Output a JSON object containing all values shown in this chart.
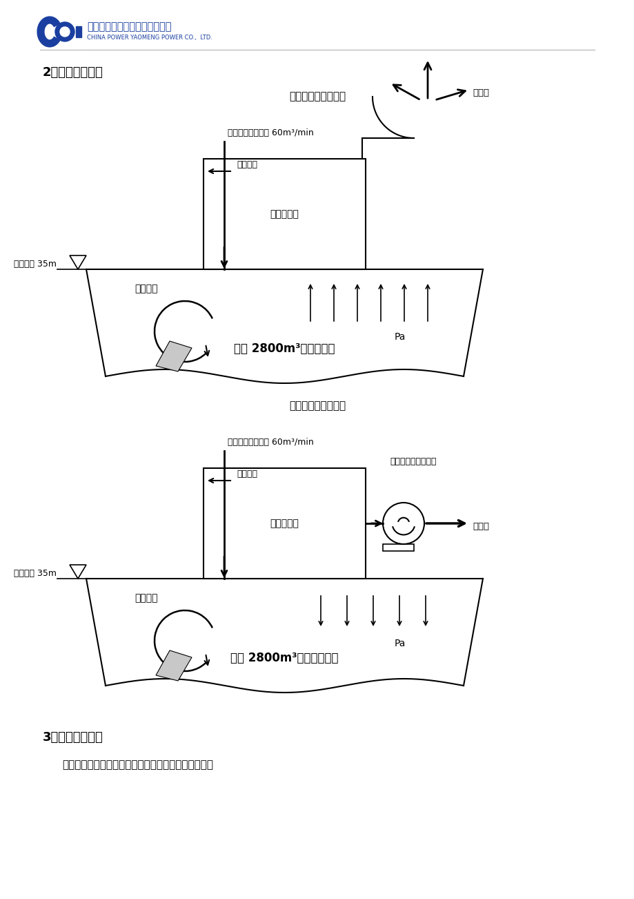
{
  "title_section": "2、改造原理图：",
  "diagram1_title": "改前排气状况示意图",
  "diagram2_title": "改后排气状况示意图",
  "section3_title": "3、改造的可行性",
  "section3_text": "本次改造目的是增加风机，强制排气，减小库内压力。",
  "label_dust_in": "除尘器来灰，气量 60m³/min",
  "label_compressed_air": "压缩空气",
  "label_roof_height": "库顶标高 35m",
  "label_bag_filter": "布袋除尘器",
  "label_ash_enter1": "进灰受阻",
  "label_ash_enter2": "进灰通畅",
  "label_pa": "Pa",
  "label_exhaust": "排大气",
  "label_new_fan": "新增风机，强制排气",
  "label_bin1": "灰库 2800m³，内部正压",
  "label_bin2": "灰库 2800m³，内部微负压",
  "bg_color": "#ffffff",
  "logo_text_cn": "中国电力姚孟发电有限责任公司",
  "logo_text_en": "CHINA POWER YAOMENG POWER CO.,  LTD."
}
